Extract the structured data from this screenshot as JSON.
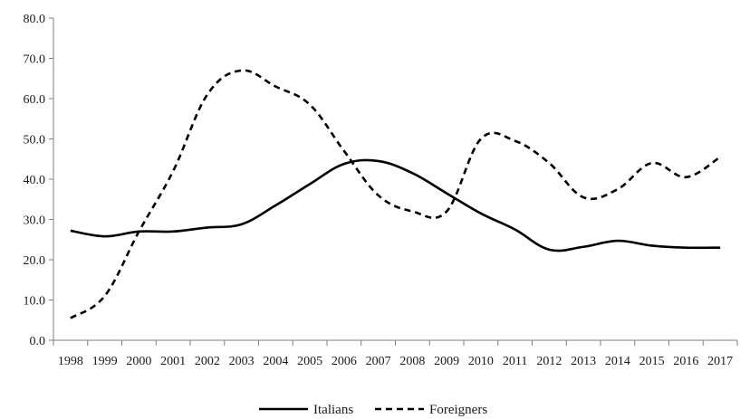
{
  "chart_data": {
    "type": "line",
    "title": "",
    "xlabel": "",
    "ylabel": "",
    "x": [
      "1998",
      "1999",
      "2000",
      "2001",
      "2002",
      "2003",
      "2004",
      "2005",
      "2006",
      "2007",
      "2008",
      "2009",
      "2010",
      "2011",
      "2012",
      "2013",
      "2014",
      "2015",
      "2016",
      "2017"
    ],
    "ylim": [
      0,
      80
    ],
    "yticks": [
      "0.0",
      "10.0",
      "20.0",
      "30.0",
      "40.0",
      "50.0",
      "60.0",
      "70.0",
      "80.0"
    ],
    "ytick_values": [
      0,
      10,
      20,
      30,
      40,
      50,
      60,
      70,
      80
    ],
    "grid": false,
    "legend_position": "bottom",
    "series": [
      {
        "name": "Italians",
        "style": "solid",
        "color": "#000000",
        "values": [
          27.2,
          25.8,
          27.0,
          27.0,
          28.0,
          28.8,
          33.5,
          38.8,
          43.8,
          44.5,
          41.5,
          36.5,
          31.5,
          27.5,
          22.5,
          23.2,
          24.7,
          23.5,
          23.0,
          23.0
        ]
      },
      {
        "name": "Foreigners",
        "style": "dashed",
        "color": "#000000",
        "values": [
          5.5,
          11.0,
          27.0,
          42.0,
          61.0,
          67.0,
          63.0,
          58.5,
          47.0,
          36.0,
          32.0,
          32.0,
          50.0,
          49.5,
          44.0,
          35.5,
          37.5,
          44.0,
          40.5,
          45.5
        ]
      }
    ]
  }
}
